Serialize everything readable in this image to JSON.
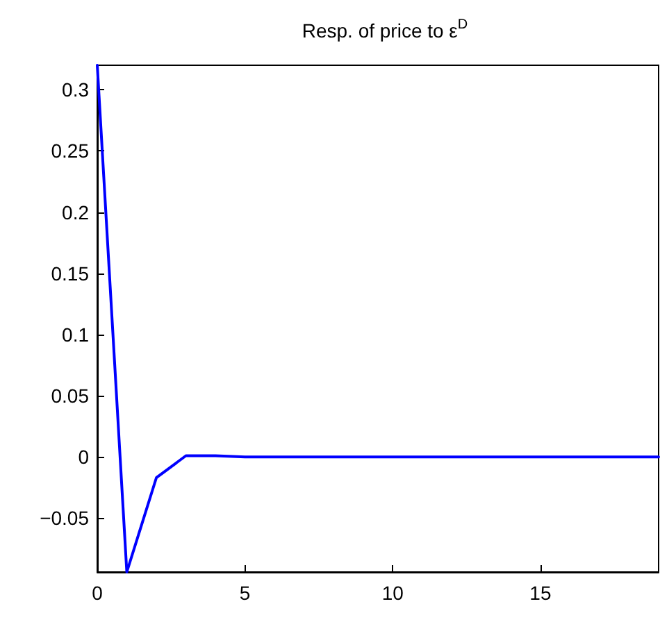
{
  "chart_data": {
    "type": "line",
    "title": "Resp. of price to ε$^{D}$",
    "x": [
      0,
      1,
      2,
      3,
      4,
      5,
      6,
      7,
      8,
      9,
      10,
      11,
      12,
      13,
      14,
      15,
      16,
      17,
      18,
      19
    ],
    "series": [
      {
        "color": "#0000ff",
        "values": [
          0.32,
          -0.094,
          -0.017,
          0.001,
          0.001,
          0,
          0,
          0,
          0,
          0,
          0,
          0,
          0,
          0,
          0,
          0,
          0,
          0,
          0,
          0
        ]
      }
    ],
    "xlim": [
      0,
      19
    ],
    "xticks": [
      0,
      5,
      10,
      15
    ],
    "ylim": [
      -0.094,
      0.32
    ],
    "yticks": [
      -0.05,
      0,
      0.05,
      0.1,
      0.15,
      0.2,
      0.25,
      0.3
    ],
    "grid": false,
    "marker": "none",
    "line_style": "solid"
  }
}
